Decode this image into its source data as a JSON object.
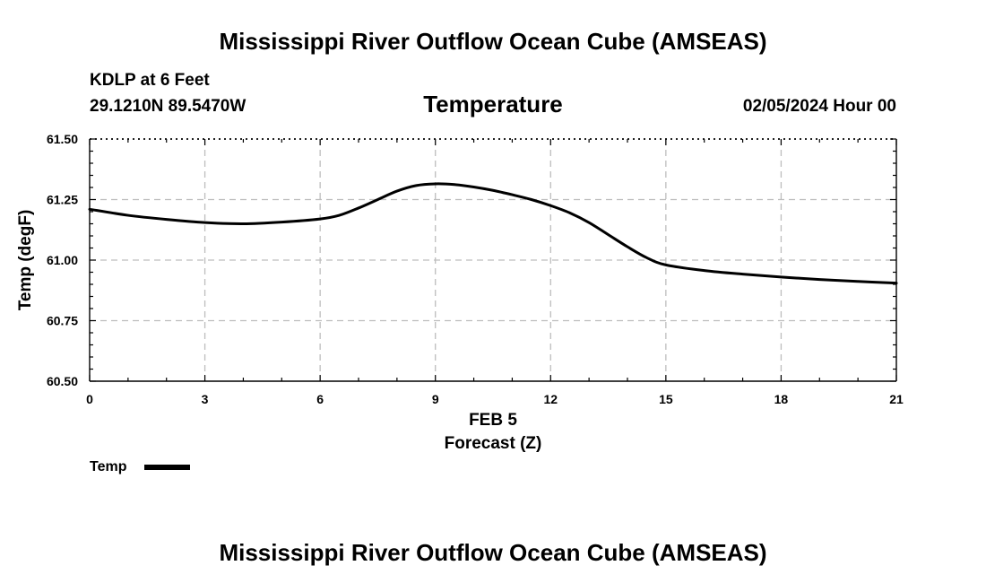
{
  "page": {
    "title": "Mississippi River Outflow Ocean Cube (AMSEAS)",
    "station": "KDLP at 6 Feet",
    "coords": "29.1210N  89.5470W",
    "subtitle": "Temperature",
    "datetime": "02/05/2024 Hour 00",
    "bottom_title": "Mississippi River Outflow Ocean Cube (AMSEAS)"
  },
  "chart_data": {
    "type": "line",
    "title": "Temperature",
    "xlabel": "Forecast (Z)",
    "xlabel_date": "FEB 5",
    "ylabel": "Temp (degF)",
    "xlim": [
      0,
      21
    ],
    "ylim": [
      60.5,
      61.5
    ],
    "x_ticks": [
      0,
      3,
      6,
      9,
      12,
      15,
      18,
      21
    ],
    "x_tick_labels": [
      "0",
      "3",
      "6",
      "9",
      "12",
      "15",
      "18",
      "21"
    ],
    "y_ticks": [
      60.5,
      60.75,
      61.0,
      61.25,
      61.5
    ],
    "y_tick_labels": [
      "60.50",
      "60.75",
      "61.00",
      "61.25",
      "61.50"
    ],
    "grid": true,
    "legend_position": "bottom-left",
    "series": [
      {
        "name": "Temp",
        "color": "#000000",
        "x": [
          0,
          1,
          2,
          3,
          4,
          5,
          6,
          6.5,
          7,
          7.5,
          8,
          8.5,
          9,
          9.5,
          10,
          10.5,
          11,
          11.5,
          12,
          12.5,
          13,
          13.5,
          14,
          14.5,
          15,
          16,
          17,
          18,
          19,
          20,
          21
        ],
        "values": [
          61.21,
          61.185,
          61.168,
          61.155,
          61.15,
          61.157,
          61.17,
          61.185,
          61.215,
          61.25,
          61.285,
          61.308,
          61.315,
          61.312,
          61.302,
          61.288,
          61.27,
          61.25,
          61.225,
          61.195,
          61.155,
          61.105,
          61.055,
          61.01,
          60.98,
          60.957,
          60.942,
          60.93,
          60.92,
          60.912,
          60.905
        ]
      }
    ]
  }
}
